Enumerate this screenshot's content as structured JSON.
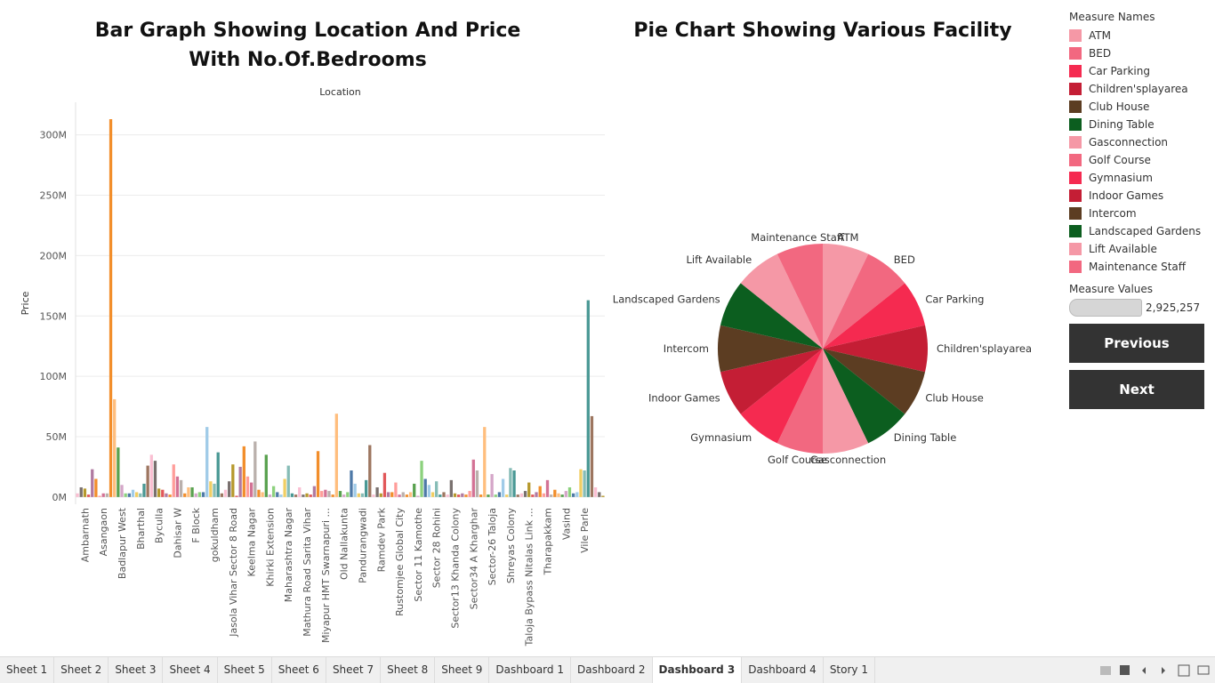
{
  "chart_data": [
    {
      "type": "bar",
      "title": "Bar Graph Showing Location And Price With No.Of.Bedrooms",
      "x_header": "Location",
      "y_label": "Price",
      "categories": [
        null,
        null,
        "Ambarnath",
        null,
        null,
        null,
        null,
        "Asangaon",
        null,
        null,
        null,
        null,
        "Badlapur West",
        null,
        null,
        null,
        null,
        "Bharthal",
        null,
        null,
        null,
        null,
        "Byculla",
        null,
        null,
        null,
        null,
        "Dahisar W",
        null,
        null,
        null,
        null,
        "F Block",
        null,
        null,
        null,
        null,
        "gokuldham",
        null,
        null,
        null,
        null,
        "Jasola Vihar Sector 8 Road",
        null,
        null,
        null,
        null,
        "Keelma Nagar",
        null,
        null,
        null,
        null,
        "Khirki Extension",
        null,
        null,
        null,
        null,
        "Maharashtra Nagar",
        null,
        null,
        null,
        null,
        "Mathura Road Sarita Vihar",
        null,
        null,
        null,
        null,
        "Miyapur HMT Swarnapuri ...",
        null,
        null,
        null,
        null,
        "Old Nallakunta",
        null,
        null,
        null,
        null,
        "Pandurangwadi",
        null,
        null,
        null,
        null,
        "Ramdev Park",
        null,
        null,
        null,
        null,
        "Rustomjee Global City",
        null,
        null,
        null,
        null,
        "Sector 11 Kamothe",
        null,
        null,
        null,
        null,
        "Sector 28 Rohini",
        null,
        null,
        null,
        null,
        "Sector13 Khanda Colony",
        null,
        null,
        null,
        null,
        "Sector34 A Kharghar",
        null,
        null,
        null,
        null,
        "Sector-26 Taloja",
        null,
        null,
        null,
        null,
        "Shreyas Colony",
        null,
        null,
        null,
        null,
        "Taloja Bypass Nitalas Link ...",
        null,
        null,
        null,
        null,
        "Tharapakkam",
        null,
        null,
        null,
        null,
        "Vasind",
        null,
        null,
        null,
        null,
        "Vile Parle",
        null,
        null,
        null,
        null,
        null
      ],
      "values": [
        3000000,
        8000000,
        7000000,
        2000000,
        23000000,
        15000000,
        1000000,
        3000000,
        3000000,
        313000000,
        81000000,
        41000000,
        10000000,
        3000000,
        3000000,
        6000000,
        4000000,
        3000000,
        11000000,
        26000000,
        35000000,
        30000000,
        7000000,
        6000000,
        3000000,
        2000000,
        27000000,
        17000000,
        14000000,
        3000000,
        8000000,
        8000000,
        3000000,
        4000000,
        4000000,
        58000000,
        13000000,
        11000000,
        37000000,
        3000000,
        6000000,
        13000000,
        27000000,
        1000000,
        25000000,
        42000000,
        17000000,
        12000000,
        46000000,
        6000000,
        4000000,
        35000000,
        2000000,
        9000000,
        4000000,
        2000000,
        15000000,
        26000000,
        3000000,
        2000000,
        8000000,
        2000000,
        3000000,
        2000000,
        9000000,
        38000000,
        5000000,
        6000000,
        5000000,
        2000000,
        69000000,
        5000000,
        2000000,
        4000000,
        22000000,
        11000000,
        3000000,
        3000000,
        14000000,
        43000000,
        2000000,
        8000000,
        3000000,
        20000000,
        4000000,
        4000000,
        12000000,
        2000000,
        4000000,
        2000000,
        4000000,
        11000000,
        1000000,
        30000000,
        15000000,
        10000000,
        4000000,
        13000000,
        2000000,
        4000000,
        2000000,
        14000000,
        3000000,
        2000000,
        3000000,
        2000000,
        5000000,
        31000000,
        22000000,
        2000000,
        58000000,
        2000000,
        19000000,
        2000000,
        4000000,
        15000000,
        2000000,
        24000000,
        22000000,
        2000000,
        3000000,
        5000000,
        12000000,
        2000000,
        4000000,
        9000000,
        3000000,
        14000000,
        2000000,
        6000000,
        3000000,
        2000000,
        5000000,
        8000000,
        3000000,
        4000000,
        23000000,
        22000000,
        163000000,
        67000000,
        8000000,
        4000000,
        1000000
      ],
      "palette": [
        "#fabfd2",
        "#79706e",
        "#b6992d",
        "#e15759",
        "#b07aa1",
        "#f28e2b",
        "#ff9d9a",
        "#d37295",
        "#bab0ac",
        "#f28e2b",
        "#ffbe7d",
        "#59a14f",
        "#d4a6c8",
        "#8cd17d",
        "#4e79a7",
        "#a0cbe8",
        "#f1ce63",
        "#86bcb6",
        "#499894",
        "#9d7660"
      ],
      "ylim": [
        -6000000,
        327000000
      ],
      "yticks": [
        {
          "value": 0,
          "label": "0M"
        },
        {
          "value": 50000000,
          "label": "50M"
        },
        {
          "value": 100000000,
          "label": "100M"
        },
        {
          "value": 150000000,
          "label": "150M"
        },
        {
          "value": 200000000,
          "label": "200M"
        },
        {
          "value": 250000000,
          "label": "250M"
        },
        {
          "value": 300000000,
          "label": "300M"
        }
      ],
      "grid": true
    },
    {
      "type": "pie",
      "title": "Pie Chart Showing Various Facility",
      "legend_title": "Measure Names",
      "categories": [
        "ATM",
        "BED",
        "Car Parking",
        "Children'splayarea",
        "Club House",
        "Dining Table",
        "Gasconnection",
        "Golf Course",
        "Gymnasium",
        "Indoor Games",
        "Intercom",
        "Landscaped Gardens",
        "Lift Available",
        "Maintenance Staff"
      ],
      "values": [
        2925257,
        2925257,
        2925257,
        2925257,
        2925257,
        2925257,
        2925257,
        2925257,
        2925257,
        2925257,
        2925257,
        2925257,
        2925257,
        2925257
      ],
      "colors": [
        "#f598a6",
        "#f26880",
        "#f52a50",
        "#c41e35",
        "#5c3d22",
        "#0c5e1f",
        "#f598a6",
        "#f26880",
        "#f52a50",
        "#c41e35",
        "#5c3d22",
        "#0c5e1f",
        "#f598a6",
        "#f26880"
      ],
      "size_legend": {
        "title": "Measure Values",
        "max": {
          "value": 2925257,
          "label": "2,925,257"
        }
      }
    }
  ],
  "buttons": [
    "Previous",
    "Next"
  ],
  "tabs": [
    "Sheet 1",
    "Sheet 2",
    "Sheet 3",
    "Sheet 4",
    "Sheet 5",
    "Sheet 6",
    "Sheet 7",
    "Sheet 8",
    "Sheet 9",
    "Dashboard 1",
    "Dashboard 2",
    "Dashboard 3",
    "Dashboard 4",
    "Story 1"
  ],
  "active_tab": "Dashboard 3"
}
